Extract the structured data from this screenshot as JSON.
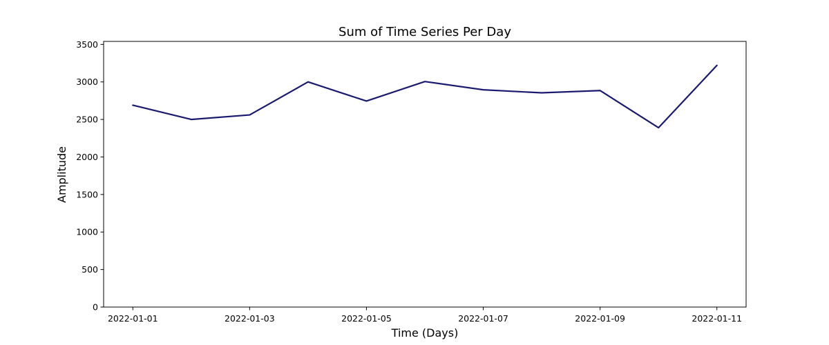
{
  "chart_data": {
    "type": "line",
    "title": "Sum of Time Series Per Day",
    "xlabel": "Time (Days)",
    "ylabel": "Amplitude",
    "x": [
      "2022-01-01",
      "2022-01-02",
      "2022-01-03",
      "2022-01-04",
      "2022-01-05",
      "2022-01-06",
      "2022-01-07",
      "2022-01-08",
      "2022-01-09",
      "2022-01-10",
      "2022-01-11"
    ],
    "series": [
      {
        "name": "",
        "color": "#191970",
        "values": [
          2690,
          2500,
          2560,
          3000,
          2745,
          3005,
          2895,
          2855,
          2885,
          2390,
          3220
        ]
      }
    ],
    "x_ticks": [
      "2022-01-01",
      "2022-01-03",
      "2022-01-05",
      "2022-01-07",
      "2022-01-09",
      "2022-01-11"
    ],
    "y_ticks": [
      0,
      500,
      1000,
      1500,
      2000,
      2500,
      3000,
      3500
    ],
    "ylim": [
      0,
      3540
    ],
    "xlim": [
      "2021-12-31T12:00",
      "2022-01-11T12:00"
    ],
    "grid": false,
    "legend": "none"
  }
}
